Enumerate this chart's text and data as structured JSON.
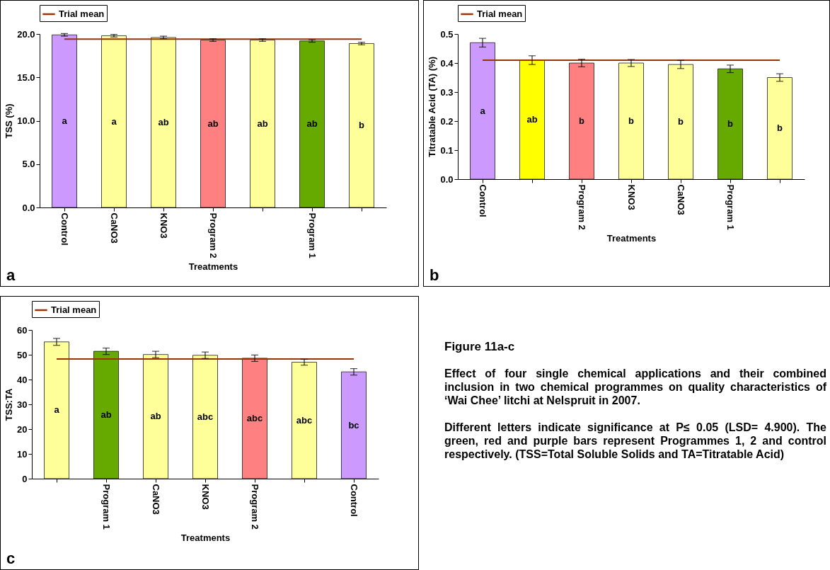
{
  "chart_data": [
    {
      "type": "bar",
      "xlabel": "Treatments",
      "ylabel": "TSS (%)",
      "annotations": [
        "a"
      ],
      "categories": [
        "Control",
        "CaNO3",
        "KNO3",
        "Program 2",
        null,
        "Program 1",
        null
      ],
      "values": [
        19.9,
        19.8,
        19.6,
        19.3,
        19.3,
        19.2,
        18.9
      ],
      "errors": [
        0.15,
        0.15,
        0.15,
        0.15,
        0.15,
        0.15,
        0.15
      ],
      "colors": [
        "#cc99ff",
        "#ffff99",
        "#ffff99",
        "#ff8080",
        "#ffff99",
        "#66aa00",
        "#ffff99"
      ],
      "value_labels": [
        "a",
        "a",
        "ab",
        "ab",
        "ab",
        "ab",
        "b"
      ],
      "ylim": [
        0,
        20
      ],
      "yticks": [
        {
          "value": 0,
          "label": "0.0"
        },
        {
          "value": 5,
          "label": "5.0"
        },
        {
          "value": 10,
          "label": "10.0"
        },
        {
          "value": 15,
          "label": "15.0"
        },
        {
          "value": 20,
          "label": "20.0"
        }
      ],
      "ref_lines": [
        {
          "axis": "y",
          "value": 19.4,
          "label": "Trial mean",
          "color": "#993300"
        }
      ],
      "legend": "top",
      "grid": false
    },
    {
      "type": "bar",
      "xlabel": "Treatments",
      "ylabel": "Titratable Acid (TA) (%)",
      "annotations": [
        "b"
      ],
      "categories": [
        "Control",
        null,
        "Program 2",
        "KNO3",
        "CaNO3",
        "Program 1",
        null
      ],
      "values": [
        0.47,
        0.41,
        0.4,
        0.4,
        0.395,
        0.38,
        0.35
      ],
      "errors": [
        0.015,
        0.015,
        0.013,
        0.012,
        0.014,
        0.013,
        0.013
      ],
      "colors": [
        "#cc99ff",
        "#ffff00",
        "#ff8080",
        "#ffff99",
        "#ffff99",
        "#66aa00",
        "#ffff99"
      ],
      "value_labels": [
        "a",
        "ab",
        "b",
        "b",
        "b",
        "b",
        "b"
      ],
      "ylim": [
        0,
        0.5
      ],
      "yticks": [
        {
          "value": 0,
          "label": "0.0"
        },
        0.1,
        0.2,
        0.3,
        0.4,
        0.5
      ],
      "ref_lines": [
        {
          "axis": "y",
          "value": 0.41,
          "label": "Trial mean",
          "color": "#993300"
        }
      ],
      "legend": "top",
      "grid": false
    },
    {
      "type": "bar",
      "xlabel": "Treatments",
      "ylabel": "TSS:TA",
      "annotations": [
        "c"
      ],
      "categories": [
        null,
        "Program 1",
        "CaNO3",
        "KNO3",
        "Program 2",
        null,
        "Control"
      ],
      "values": [
        55.2,
        51.4,
        50.1,
        49.8,
        48.6,
        47.0,
        43.1
      ],
      "errors": [
        1.4,
        1.3,
        1.3,
        1.3,
        1.3,
        1.2,
        1.3
      ],
      "colors": [
        "#ffff99",
        "#66aa00",
        "#ffff99",
        "#ffff99",
        "#ff8080",
        "#ffff99",
        "#cc99ff"
      ],
      "value_labels": [
        "a",
        "ab",
        "ab",
        "abc",
        "abc",
        "abc",
        "bc"
      ],
      "ylim": [
        0,
        60
      ],
      "yticks": [
        0,
        10,
        20,
        30,
        40,
        50,
        60
      ],
      "ref_lines": [
        {
          "axis": "y",
          "value": 48.3,
          "label": "Trial mean",
          "color": "#993300"
        }
      ],
      "legend": "top",
      "grid": false
    },
    {
      "type": "other",
      "title": "Figure 11a-c",
      "annotations": [
        "Effect of four single chemical applications and their combined inclusion in two chemical programmes on quality characteristics of ‘Wai Chee’ litchi at Nelspruit in 2007.",
        "Different letters indicate significance at P≤ 0.05 (LSD= 4.900).  The green, red and purple bars represent Programmes 1, 2 and control respectively.  (TSS=Total Soluble Solids and TA=Titratable Acid)"
      ]
    }
  ]
}
